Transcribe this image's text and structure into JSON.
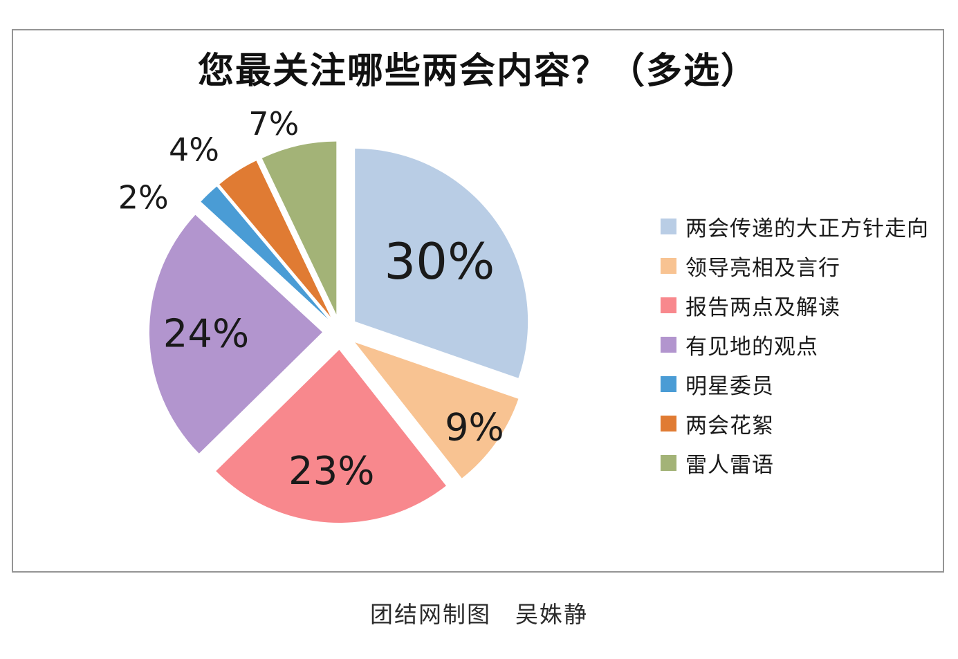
{
  "page": {
    "background": "#ffffff",
    "frame_border_color": "#949494"
  },
  "chart_data": {
    "type": "pie",
    "title": "您最关注哪些两会内容？（多选）",
    "caption": "团结网制图　吴姝静",
    "legend_position": "right",
    "start_angle_deg": 0,
    "direction": "clockwise",
    "exploded": true,
    "values_sum_shown": 99,
    "slices": [
      {
        "label": "两会传递的大正方针走向",
        "value": 30,
        "display": "30%",
        "color": "#b9cde5",
        "label_placement": "inside"
      },
      {
        "label": "领导亮相及言行",
        "value": 9,
        "display": "9%",
        "color": "#f8c392",
        "label_placement": "inside"
      },
      {
        "label": "报告两点及解读",
        "value": 23,
        "display": "23%",
        "color": "#f8888d",
        "label_placement": "inside"
      },
      {
        "label": "有见地的观点",
        "value": 24,
        "display": "24%",
        "color": "#b295ce",
        "label_placement": "inside"
      },
      {
        "label": "明星委员",
        "value": 2,
        "display": "2%",
        "color": "#4a9cd5",
        "label_placement": "outside"
      },
      {
        "label": "两会花絮",
        "value": 4,
        "display": "4%",
        "color": "#e07b33",
        "label_placement": "outside"
      },
      {
        "label": "雷人雷语",
        "value": 7,
        "display": "7%",
        "color": "#a3b377",
        "label_placement": "outside"
      }
    ]
  }
}
